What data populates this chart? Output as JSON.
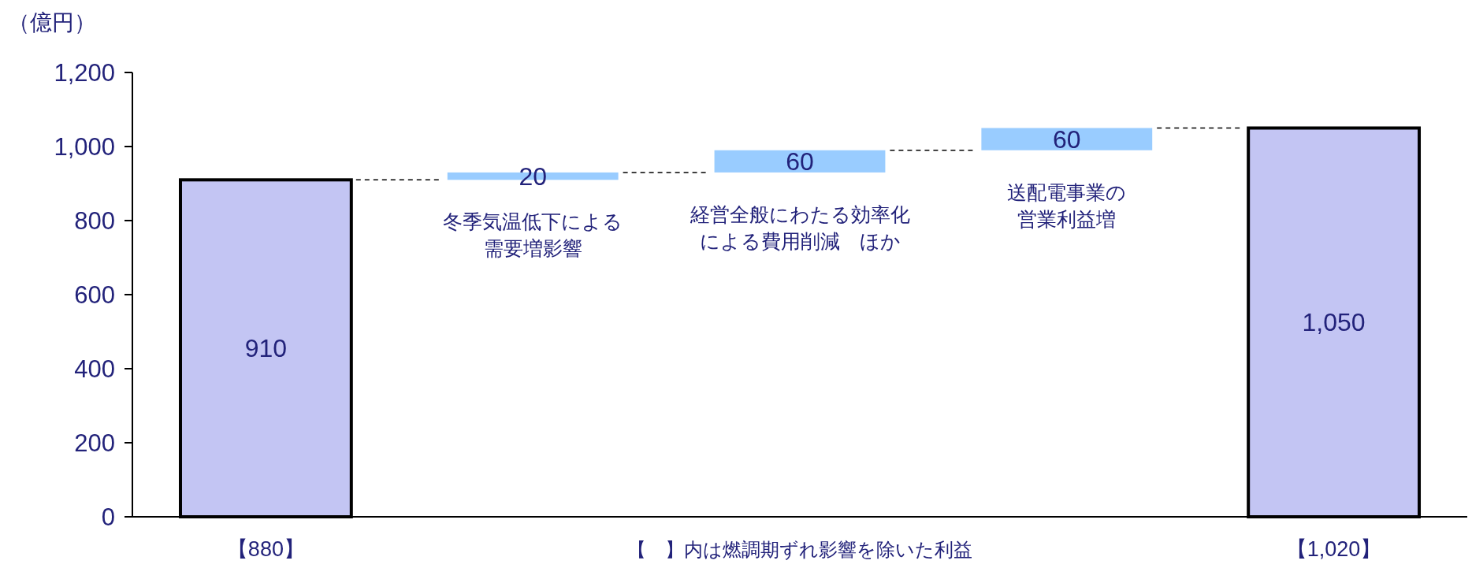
{
  "chart_data": {
    "type": "bar",
    "ylabel": "（億円）",
    "categories": [
      "【880】",
      null,
      null,
      null,
      "【1,020】"
    ],
    "values": [
      910,
      20,
      60,
      60,
      1050
    ],
    "base": [
      0,
      910,
      930,
      990,
      0
    ],
    "colors": [
      "#c3c5f3",
      "#99ccff",
      "#99ccff",
      "#99ccff",
      "#c3c5f3"
    ],
    "value_labels": [
      "910",
      "20",
      "60",
      "60",
      "1,050"
    ],
    "ylim": [
      0,
      1200
    ],
    "yticks": [
      0,
      200,
      400,
      600,
      800,
      {
        "value": 1000,
        "label": "1,000"
      },
      {
        "value": 1200,
        "label": "1,200"
      }
    ],
    "grid": false,
    "annotations": [
      "冬季気温低下による",
      "需要増影響",
      "経営全般にわたる効率化",
      "による費用削減　ほか",
      "送配電事業の",
      "営業利益増",
      "【　】内は燃調期ずれ影響を除いた利益"
    ]
  }
}
